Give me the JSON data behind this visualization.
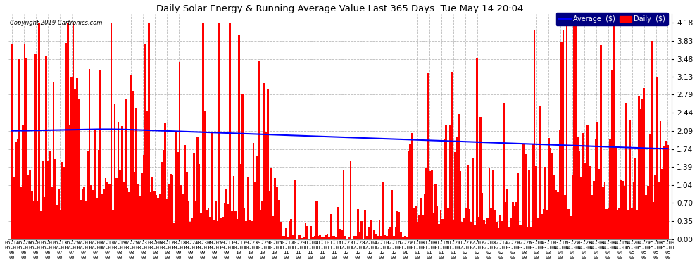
{
  "title": "Daily Solar Energy & Running Average Value Last 365 Days  Tue May 14 20:04",
  "copyright": "Copyright 2019 Cartronics.com",
  "bar_color": "#FF0000",
  "avg_color": "#0000FF",
  "bg_color": "#FFFFFF",
  "plot_bg_color": "#FFFFFF",
  "grid_color": "#AAAAAA",
  "yticks": [
    0.0,
    0.35,
    0.7,
    1.04,
    1.39,
    1.74,
    2.09,
    2.44,
    2.79,
    3.13,
    3.48,
    3.83,
    4.18
  ],
  "ylim": [
    0.0,
    4.35
  ],
  "legend_avg_label": "Average  ($)",
  "legend_daily_label": "Daily  ($)",
  "legend_avg_bg": "#000080",
  "legend_daily_color": "#FF0000",
  "n_bars": 365,
  "figsize": [
    9.9,
    3.75
  ],
  "dpi": 100,
  "x_tick_row1": [
    "05-14",
    "05-26",
    "06-01",
    "06-07",
    "06-13",
    "06-25",
    "07-01",
    "07-07",
    "07-13",
    "07-19",
    "07-25",
    "07-31",
    "08-06",
    "08-12",
    "08-18",
    "08-24",
    "08-30",
    "09-05",
    "09-11",
    "09-17",
    "09-23",
    "09-29",
    "10-05",
    "10-17",
    "10-29",
    "11-04",
    "11-10",
    "11-16",
    "11-22",
    "11-28",
    "12-04",
    "12-10",
    "12-16",
    "12-22",
    "01-03",
    "01-09",
    "01-15",
    "01-21",
    "01-27",
    "02-02",
    "02-08",
    "02-14",
    "02-20",
    "02-26",
    "03-04",
    "03-10",
    "03-16",
    "03-22",
    "03-28",
    "04-03",
    "04-09",
    "04-15",
    "04-21",
    "04-27",
    "05-03",
    "05-09"
  ],
  "x_tick_row2": [
    "06-01",
    "06-01",
    "06-01",
    "06-01",
    "07-01",
    "07-01",
    "07-01",
    "07-01",
    "07-01",
    "08-01",
    "08-01",
    "08-01",
    "08-01",
    "08-01",
    "09-01",
    "09-01",
    "09-01",
    "09-01",
    "09-01",
    "10-01",
    "10-01",
    "10-01",
    "10-01",
    "11-01",
    "11-01",
    "11-01",
    "11-01",
    "11-01",
    "12-01",
    "12-01",
    "12-01",
    "12-01",
    "12-01",
    "01-01",
    "01-01",
    "01-01",
    "01-01",
    "01-01",
    "02-01",
    "02-01",
    "02-01",
    "02-01",
    "03-01",
    "03-01",
    "03-01",
    "03-01",
    "04-01",
    "04-01",
    "04-01",
    "04-01",
    "04-01",
    "04-01",
    "05-01",
    "05-01",
    "05-01",
    "05-01"
  ],
  "x_tick_row3": [
    "06",
    "06",
    "06",
    "06",
    "07",
    "07",
    "07",
    "07",
    "07",
    "08",
    "08",
    "08",
    "08",
    "08",
    "09",
    "09",
    "09",
    "09",
    "09",
    "10",
    "10",
    "10",
    "10",
    "11",
    "11",
    "11",
    "11",
    "11",
    "12",
    "12",
    "12",
    "12",
    "12",
    "01",
    "01",
    "01",
    "01",
    "01",
    "02",
    "02",
    "02",
    "02",
    "03",
    "03",
    "03",
    "03",
    "04",
    "04",
    "04",
    "04",
    "04",
    "04",
    "05",
    "05",
    "05",
    "05"
  ]
}
